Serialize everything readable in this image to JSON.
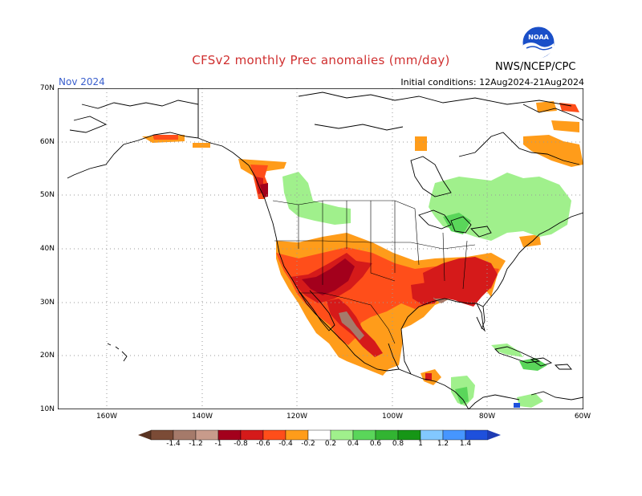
{
  "header": {
    "title": "CFSv2 monthly Prec anomalies (mm/day)",
    "month": "Nov 2024",
    "initial_conditions": "Initial conditions: 12Aug2024-21Aug2024",
    "agency": "NWS/NCEP/CPC",
    "logo_text": "NOAA"
  },
  "axes": {
    "lat_labels": [
      "70N",
      "60N",
      "50N",
      "40N",
      "30N",
      "20N",
      "10N"
    ],
    "lon_labels": [
      "160W",
      "140W",
      "120W",
      "100W",
      "80W",
      "60W"
    ]
  },
  "colorbar": {
    "labels": [
      "-1.4",
      "-1.2",
      "-1",
      "-0.8",
      "-0.6",
      "-0.4",
      "-0.2",
      "0.2",
      "0.4",
      "0.6",
      "0.8",
      "1",
      "1.2",
      "1.4"
    ],
    "colors": [
      "#7b4b36",
      "#a57a6a",
      "#c89b8b",
      "#a3001c",
      "#d51a1a",
      "#ff4e1a",
      "#ff9c1a",
      "#ffffff",
      "#a0f08c",
      "#5ad65a",
      "#32b432",
      "#169616",
      "#82c8ff",
      "#4696ff",
      "#1e50dc"
    ],
    "end_low_color": "#5a3422",
    "end_high_color": "#1e3cb4"
  },
  "colors": {
    "coast": "#000000",
    "grid": "#9a9a9a",
    "orange": "#ff9c1a",
    "redorange": "#ff4e1a",
    "red": "#d51a1a",
    "darkred": "#a3001c",
    "brown": "#a57a6a",
    "lightgreen": "#a0f08c",
    "green": "#5ad65a",
    "blue": "#1e50dc"
  }
}
